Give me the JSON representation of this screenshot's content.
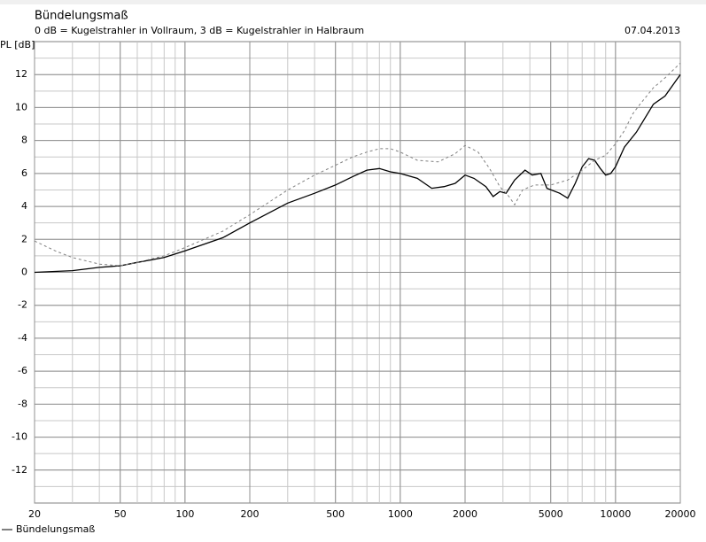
{
  "chart_data": {
    "type": "line",
    "title": "Bündelungsmaß",
    "subtitle": "0 dB = Kugelstrahler in Vollraum, 3 dB = Kugelstrahler in Halbraum",
    "date": "07.04.2013",
    "y_label": "PL [dB]",
    "x_log": true,
    "grid": true,
    "xlim": [
      20,
      20000
    ],
    "xticks": [
      20,
      50,
      100,
      200,
      500,
      1000,
      2000,
      5000,
      10000,
      20000
    ],
    "ylim": [
      -14,
      14
    ],
    "yticks": [
      -12,
      -10,
      -8,
      -6,
      -4,
      -2,
      0,
      2,
      4,
      6,
      8,
      10,
      12
    ],
    "series": [
      {
        "name": "Bündelungsmaß",
        "color": "#000000",
        "x": [
          20,
          30,
          40,
          50,
          60,
          80,
          100,
          150,
          200,
          300,
          400,
          500,
          600,
          700,
          800,
          900,
          1000,
          1200,
          1400,
          1600,
          1800,
          2000,
          2200,
          2500,
          2700,
          2900,
          3100,
          3400,
          3800,
          4100,
          4500,
          4800,
          5500,
          6000,
          6500,
          7000,
          7500,
          8000,
          8500,
          9000,
          9500,
          10000,
          11000,
          12500,
          15000,
          17000,
          20000
        ],
        "values": [
          0,
          0.1,
          0.3,
          0.4,
          0.6,
          0.9,
          1.3,
          2.1,
          3.0,
          4.2,
          4.8,
          5.3,
          5.8,
          6.2,
          6.3,
          6.1,
          6.0,
          5.7,
          5.1,
          5.2,
          5.4,
          5.9,
          5.7,
          5.2,
          4.6,
          4.9,
          4.8,
          5.6,
          6.2,
          5.9,
          6.0,
          5.1,
          4.8,
          4.5,
          5.4,
          6.4,
          6.9,
          6.8,
          6.3,
          5.9,
          6.0,
          6.4,
          7.6,
          8.5,
          10.2,
          10.7,
          12.0
        ]
      },
      {
        "color": "#808080",
        "dashed": true,
        "x": [
          20,
          25,
          30,
          40,
          50,
          60,
          80,
          100,
          150,
          200,
          300,
          400,
          500,
          600,
          700,
          800,
          900,
          1000,
          1200,
          1500,
          1800,
          2000,
          2300,
          2600,
          2900,
          3200,
          3400,
          3700,
          4200,
          5000,
          6000,
          7000,
          8000,
          9000,
          10000,
          11000,
          12000,
          13000,
          15000,
          17000,
          20000
        ],
        "values": [
          1.9,
          1.3,
          0.9,
          0.5,
          0.4,
          0.6,
          1.0,
          1.5,
          2.5,
          3.5,
          5.0,
          5.9,
          6.5,
          7.0,
          7.3,
          7.5,
          7.5,
          7.3,
          6.8,
          6.7,
          7.2,
          7.7,
          7.3,
          6.3,
          5.2,
          4.6,
          4.1,
          5.0,
          5.3,
          5.3,
          5.6,
          6.2,
          6.8,
          7.1,
          7.8,
          8.6,
          9.6,
          10.2,
          11.2,
          11.8,
          12.7
        ]
      }
    ]
  }
}
